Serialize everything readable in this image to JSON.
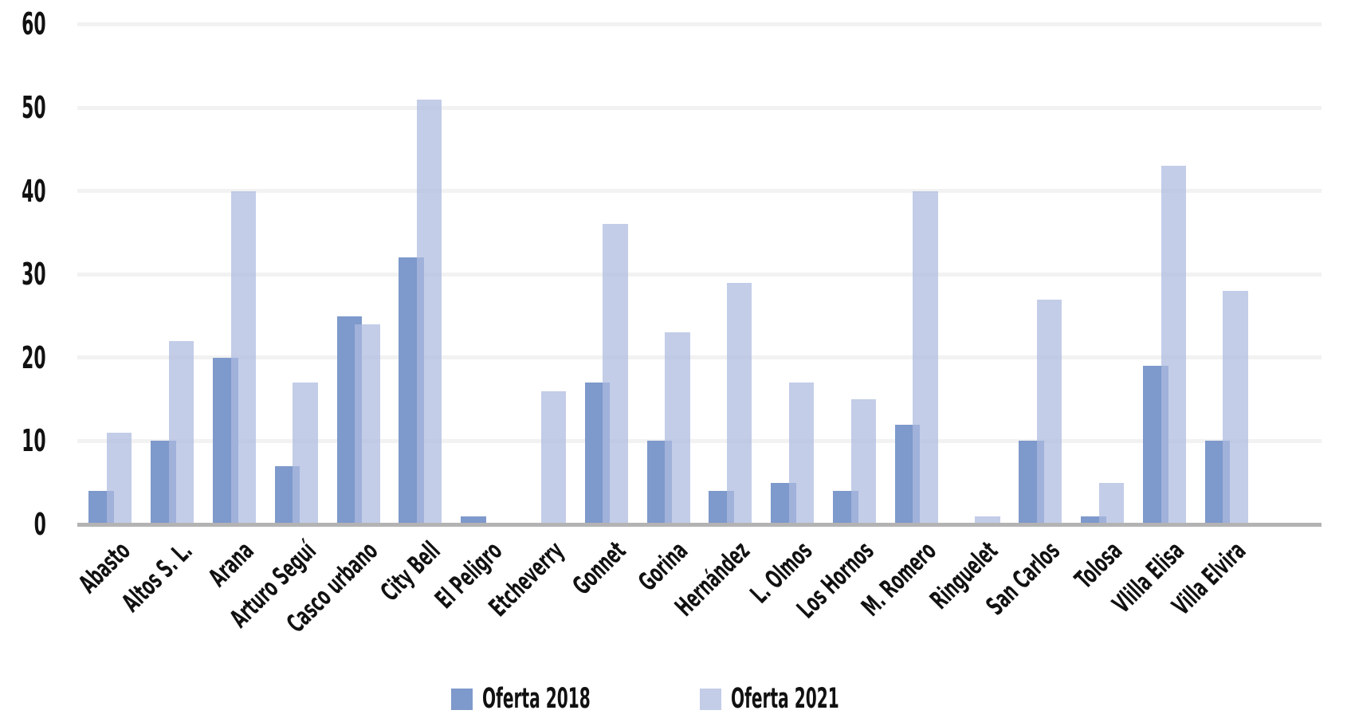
{
  "chart_data": {
    "type": "bar",
    "title": "",
    "categories": [
      "Abasto",
      "Altos S. L.",
      "Arana",
      "Arturo Seguí",
      "Casco urbano",
      "City Bell",
      "El Peligro",
      "Etcheverry",
      "Gonnet",
      "Gorina",
      "Hernández",
      "L. Olmos",
      "Los Hornos",
      "M. Romero",
      "Ringuelet",
      "San Carlos",
      "Tolosa",
      "Vlilla Elisa",
      "Villa Elvira"
    ],
    "series": [
      {
        "name": "Oferta 2018",
        "color": "#7e99cb",
        "values": [
          4,
          10,
          20,
          7,
          25,
          32,
          1,
          0,
          17,
          10,
          4,
          5,
          4,
          12,
          0,
          10,
          1,
          19,
          10
        ]
      },
      {
        "name": "Oferta 2021",
        "color": "#c3cde8",
        "values": [
          11,
          22,
          40,
          17,
          24,
          51,
          0,
          16,
          36,
          23,
          29,
          17,
          15,
          40,
          1,
          27,
          5,
          43,
          28
        ]
      }
    ],
    "xlabel": "",
    "ylabel": "",
    "ylim": [
      0,
      60
    ],
    "yticks": [
      0,
      10,
      20,
      30,
      40,
      50,
      60
    ],
    "grid": "horizontal",
    "legend_position": "bottom"
  },
  "colors": {
    "background": "#ffffff",
    "grid_line": "#f2f2f2",
    "axis_line": "#b3b3b3",
    "text": "#111111"
  }
}
